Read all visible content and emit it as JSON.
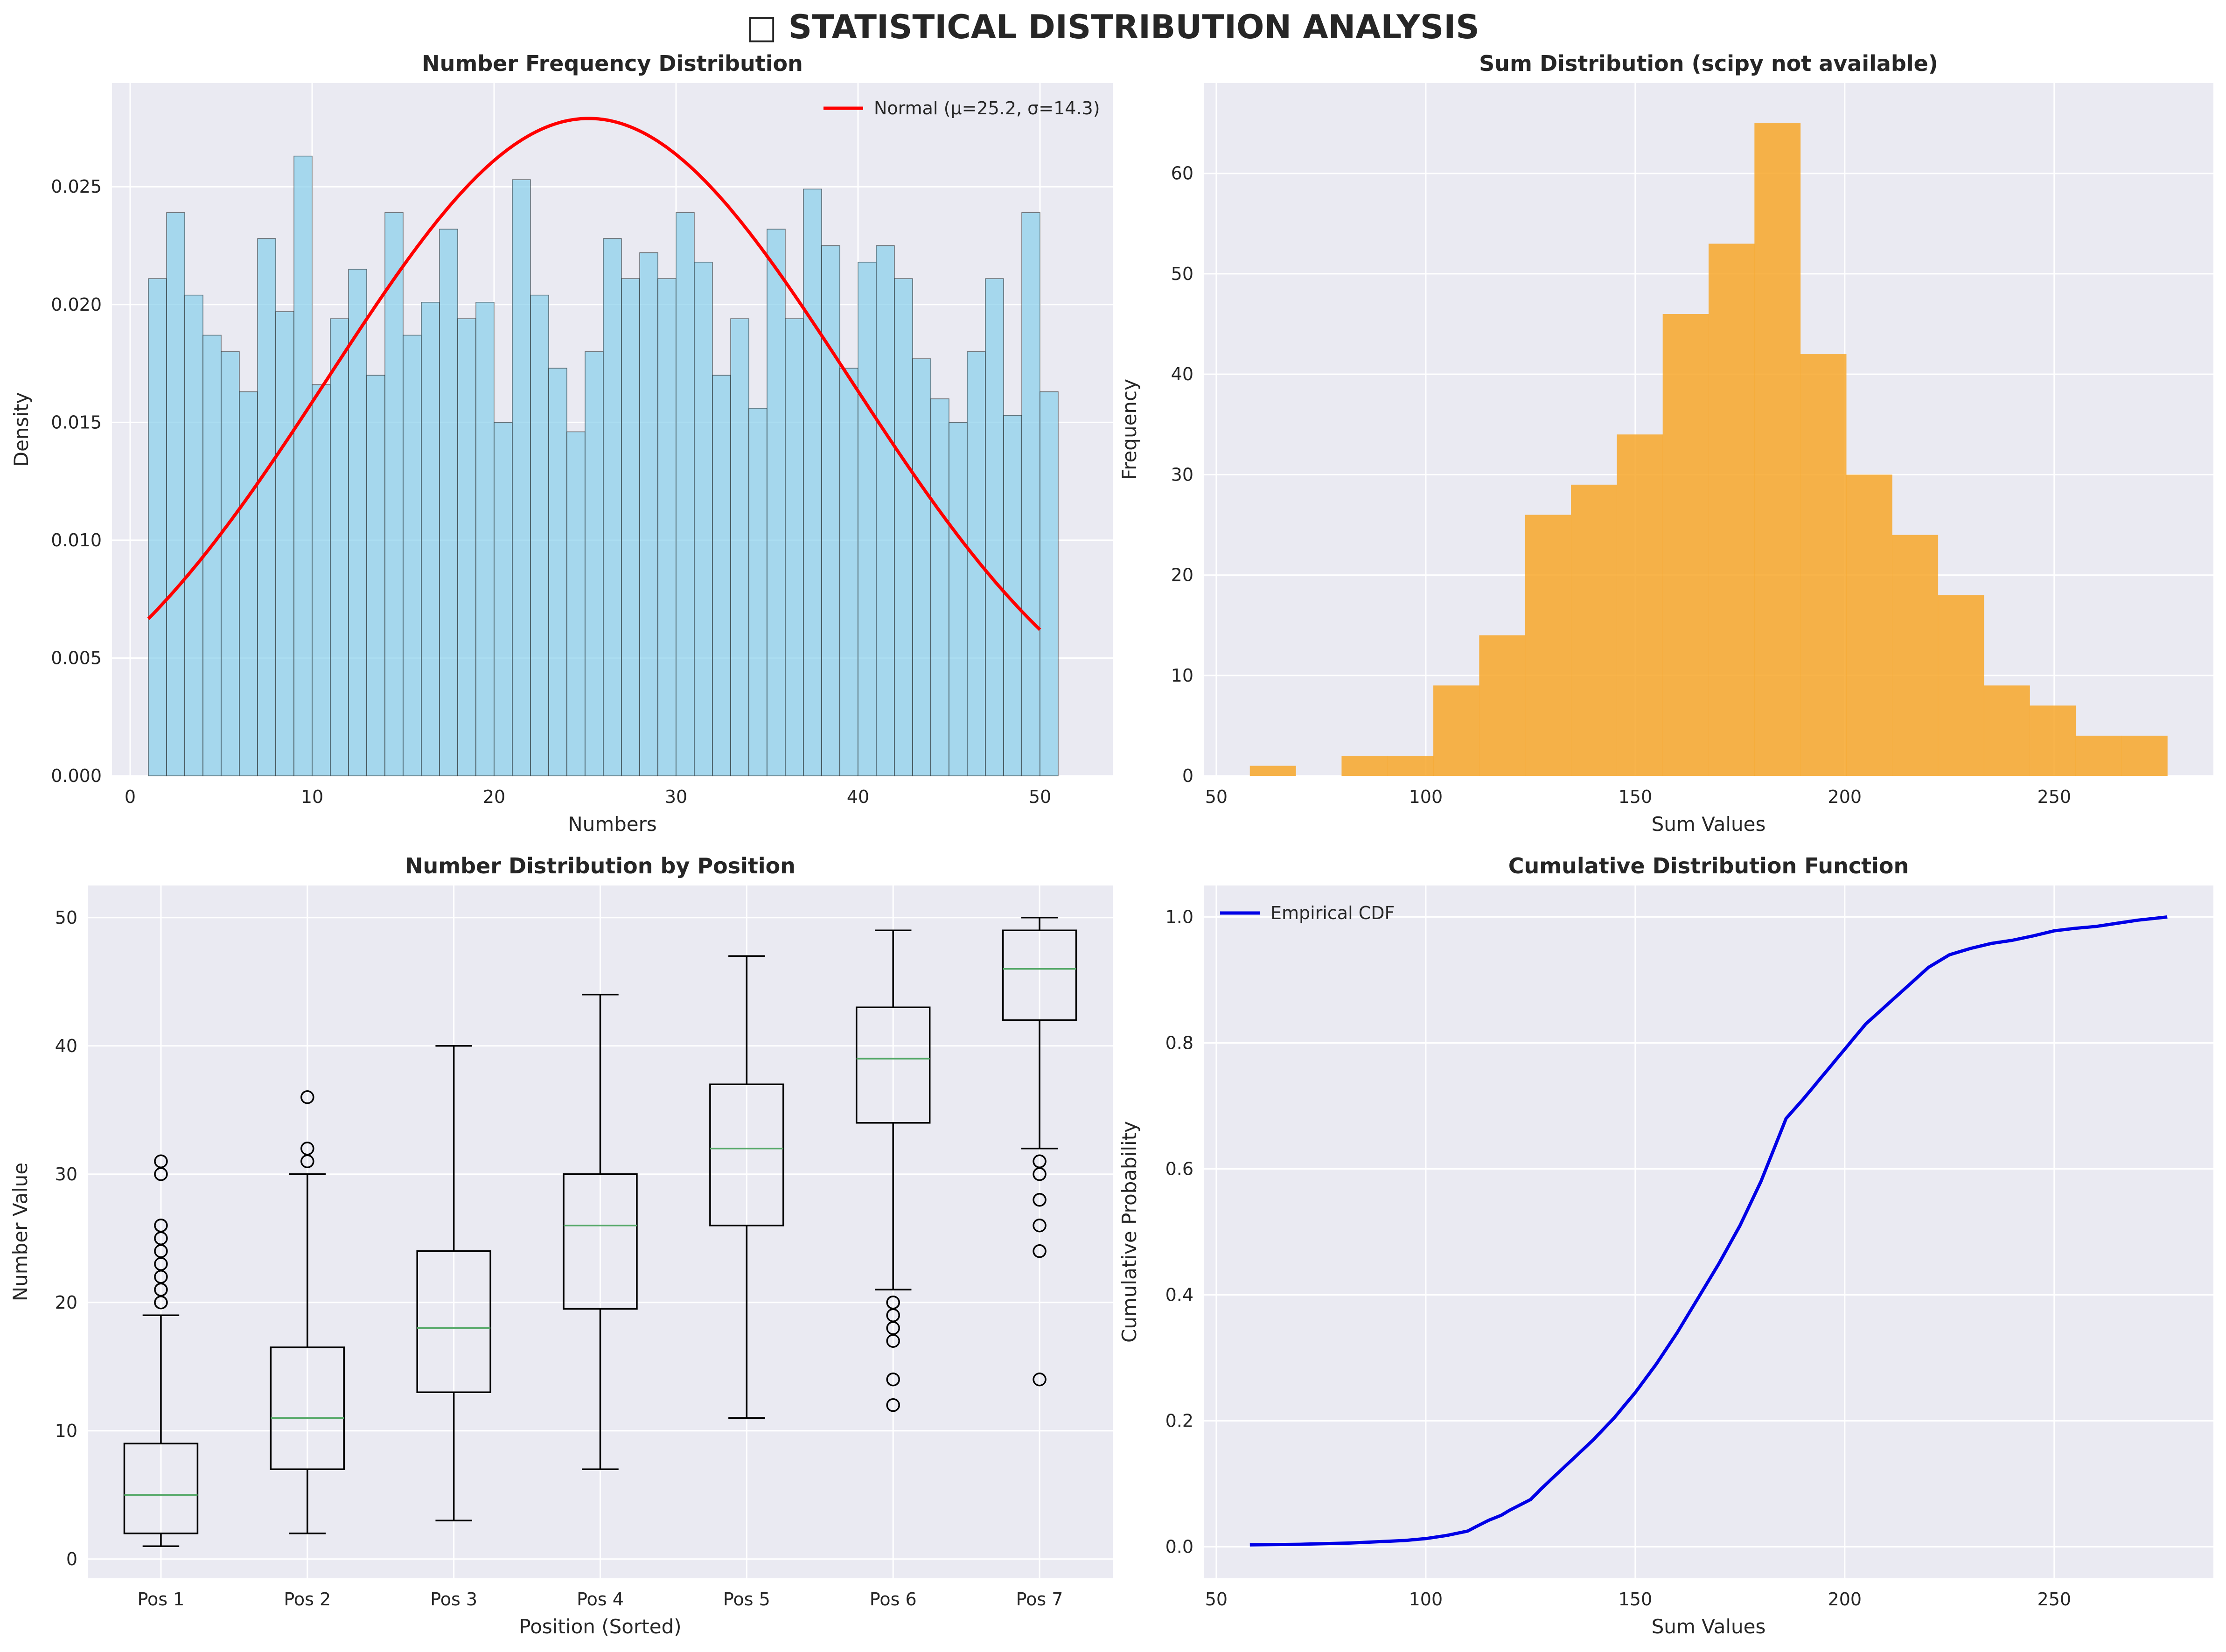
{
  "suptitle": "□ STATISTICAL DISTRIBUTION ANALYSIS",
  "colors": {
    "axes_bg": "#EAEAF2",
    "grid": "#ffffff",
    "hist_fill": "#87CEEB",
    "hist_edge": "#1a1a1a",
    "normal_line": "#ff0000",
    "sum_fill": "#F7A72A",
    "box_edge": "#000000",
    "median": "#55a868",
    "cdf_line": "#0000e6"
  },
  "chart_data": [
    {
      "type": "bar",
      "title": "Number Frequency Distribution",
      "xlabel": "Numbers",
      "ylabel": "Density",
      "xlim": [
        -1,
        54
      ],
      "ylim": [
        0,
        0.0294
      ],
      "xticks": [
        0,
        10,
        20,
        30,
        40,
        50
      ],
      "yticks": [
        0.0,
        0.005,
        0.01,
        0.015,
        0.02,
        0.025
      ],
      "ytick_labels": [
        "0.000",
        "0.005",
        "0.010",
        "0.015",
        "0.020",
        "0.025"
      ],
      "grid": true,
      "legend": "top-right",
      "bin_start": 1,
      "bin_width": 1,
      "values": [
        0.0211,
        0.0239,
        0.0204,
        0.0187,
        0.018,
        0.0163,
        0.0228,
        0.0197,
        0.0263,
        0.0166,
        0.0194,
        0.0215,
        0.017,
        0.0239,
        0.0187,
        0.0201,
        0.0232,
        0.0194,
        0.0201,
        0.015,
        0.0253,
        0.0204,
        0.0173,
        0.0146,
        0.018,
        0.0228,
        0.0211,
        0.0222,
        0.0211,
        0.0239,
        0.0218,
        0.017,
        0.0194,
        0.0156,
        0.0232,
        0.0194,
        0.0249,
        0.0225,
        0.0173,
        0.0218,
        0.0225,
        0.0211,
        0.0177,
        0.016,
        0.015,
        0.018,
        0.0211,
        0.0153,
        0.0239,
        0.0163
      ],
      "series": [
        {
          "name": "Normal (μ=25.2, σ=14.3)",
          "mu": 25.2,
          "sigma": 14.3,
          "x_range": [
            1,
            50
          ]
        }
      ]
    },
    {
      "type": "bar",
      "title": "Sum Distribution (scipy not available)",
      "xlabel": "Sum Values",
      "ylabel": "Frequency",
      "xlim": [
        47,
        288
      ],
      "ylim": [
        0,
        69
      ],
      "xticks": [
        50,
        100,
        150,
        200,
        250
      ],
      "yticks": [
        0,
        10,
        20,
        30,
        40,
        50,
        60
      ],
      "grid": true,
      "bin_start": 58,
      "bin_width": 10.95,
      "values": [
        1,
        0,
        2,
        2,
        9,
        14,
        26,
        29,
        34,
        46,
        53,
        65,
        42,
        30,
        24,
        18,
        9,
        7,
        4,
        4
      ]
    },
    {
      "type": "box",
      "title": "Number Distribution by Position",
      "xlabel": "Position (Sorted)",
      "ylabel": "Number Value",
      "ylim": [
        -1.5,
        52.5
      ],
      "yticks": [
        0,
        10,
        20,
        30,
        40,
        50
      ],
      "grid": true,
      "categories": [
        "Pos 1",
        "Pos 2",
        "Pos 3",
        "Pos 4",
        "Pos 5",
        "Pos 6",
        "Pos 7"
      ],
      "boxes": [
        {
          "whisker_low": 1,
          "q1": 2,
          "median": 5,
          "q3": 9,
          "whisker_high": 19,
          "outliers": [
            20,
            21,
            22,
            23,
            24,
            25,
            26,
            30,
            31
          ]
        },
        {
          "whisker_low": 2,
          "q1": 7,
          "median": 11,
          "q3": 16.5,
          "whisker_high": 30,
          "outliers": [
            31,
            32,
            36
          ]
        },
        {
          "whisker_low": 3,
          "q1": 13,
          "median": 18,
          "q3": 24,
          "whisker_high": 40,
          "outliers": []
        },
        {
          "whisker_low": 7,
          "q1": 19.5,
          "median": 26,
          "q3": 30,
          "whisker_high": 44,
          "outliers": []
        },
        {
          "whisker_low": 11,
          "q1": 26,
          "median": 32,
          "q3": 37,
          "whisker_high": 47,
          "outliers": []
        },
        {
          "whisker_low": 21,
          "q1": 34,
          "median": 39,
          "q3": 43,
          "whisker_high": 49,
          "outliers": [
            12,
            14,
            17,
            18,
            19,
            20
          ]
        },
        {
          "whisker_low": 32,
          "q1": 42,
          "median": 46,
          "q3": 49,
          "whisker_high": 50,
          "outliers": [
            14,
            24,
            26,
            28,
            30,
            31
          ]
        }
      ]
    },
    {
      "type": "line",
      "title": "Cumulative Distribution Function",
      "xlabel": "Sum Values",
      "ylabel": "Cumulative Probability",
      "xlim": [
        47,
        288
      ],
      "ylim": [
        -0.05,
        1.05
      ],
      "xticks": [
        50,
        100,
        150,
        200,
        250
      ],
      "yticks": [
        0.0,
        0.2,
        0.4,
        0.6,
        0.8,
        1.0
      ],
      "ytick_labels": [
        "0.0",
        "0.2",
        "0.4",
        "0.6",
        "0.8",
        "1.0"
      ],
      "grid": true,
      "legend": "top-left",
      "series": [
        {
          "name": "Empirical CDF",
          "x": [
            58,
            70,
            82,
            95,
            100,
            105,
            110,
            112,
            115,
            118,
            120,
            125,
            128,
            132,
            136,
            140,
            145,
            150,
            155,
            160,
            165,
            170,
            175,
            180,
            183,
            186,
            190,
            195,
            200,
            205,
            210,
            215,
            220,
            225,
            230,
            235,
            240,
            245,
            250,
            255,
            260,
            265,
            270,
            277
          ],
          "y": [
            0.003,
            0.004,
            0.006,
            0.01,
            0.013,
            0.018,
            0.025,
            0.032,
            0.042,
            0.05,
            0.058,
            0.075,
            0.095,
            0.12,
            0.145,
            0.17,
            0.205,
            0.245,
            0.29,
            0.34,
            0.395,
            0.45,
            0.51,
            0.58,
            0.63,
            0.68,
            0.71,
            0.75,
            0.79,
            0.83,
            0.86,
            0.89,
            0.92,
            0.94,
            0.95,
            0.958,
            0.963,
            0.97,
            0.978,
            0.982,
            0.985,
            0.99,
            0.995,
            1.0
          ]
        }
      ]
    }
  ]
}
